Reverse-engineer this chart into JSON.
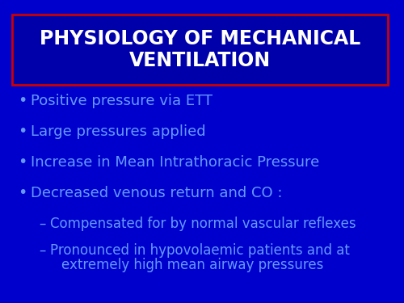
{
  "background_color": "#0000CC",
  "title_line1": "PHYSIOLOGY OF MECHANICAL",
  "title_line2": "VENTILATION",
  "title_color": "#FFFFFF",
  "title_box_fill": "#0000AA",
  "title_box_edge": "#CC0000",
  "bullet_color": "#6699FF",
  "bullet_symbol": "•",
  "bullets": [
    "Positive pressure via ETT",
    "Large pressures applied",
    "Increase in Mean Intrathoracic Pressure",
    "Decreased venous return and CO :"
  ],
  "sub_bullet1": "Compensated for by normal vascular reflexes",
  "sub_bullet2_line1": "Pronounced in hypovolaemic patients and at",
  "sub_bullet2_line2": "extremely high mean airway pressures",
  "bullet_fontsize": 13,
  "sub_bullet_fontsize": 12,
  "title_fontsize": 17
}
